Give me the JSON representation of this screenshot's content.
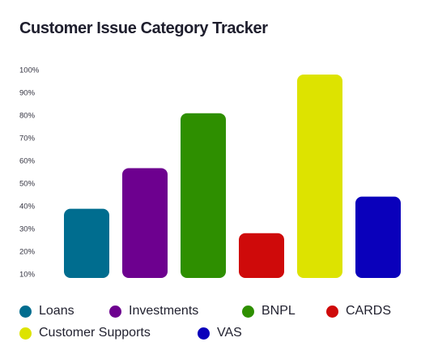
{
  "chart_data": {
    "type": "bar",
    "title": "Customer Issue Category Tracker",
    "categories": [
      "Loans",
      "Investments",
      "BNPL",
      "CARDS",
      "Customer Supports",
      "VAS"
    ],
    "values": [
      34,
      54,
      81,
      22,
      100,
      40
    ],
    "colors": [
      "#006d8f",
      "#6d008f",
      "#2e8f00",
      "#cf0a0a",
      "#dde300",
      "#0a00bb"
    ],
    "yticks": [
      "10%",
      "20%",
      "30%",
      "40%",
      "50%",
      "60%",
      "70%",
      "80%",
      "90%",
      "100%"
    ],
    "ylim": [
      10,
      100
    ],
    "grid": false,
    "legend": "bottom"
  }
}
